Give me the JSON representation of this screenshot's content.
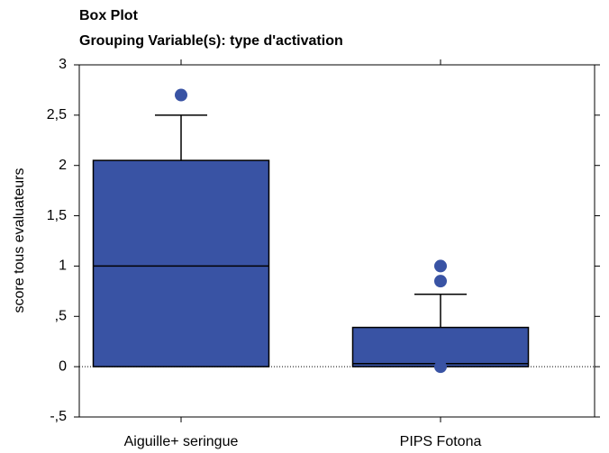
{
  "chart_data": {
    "type": "box",
    "title": "Box Plot",
    "subtitle": "Grouping Variable(s): type d'activation",
    "y_label": "score tous evaluateurs",
    "categories": [
      "Aiguille+ seringue",
      "PIPS Fotona"
    ],
    "color": "#3953a4",
    "boxes": [
      {
        "min": 0,
        "q1": 0,
        "median": 1,
        "q3": 2.05,
        "max": 2.5,
        "outliers": [
          2.7
        ]
      },
      {
        "min": 0,
        "q1": 0,
        "median": 0.03,
        "q3": 0.39,
        "max": 0.72,
        "outliers": [
          1,
          0.85,
          0
        ]
      }
    ],
    "ylim": [
      -0.5,
      3
    ],
    "yticks": [
      {
        "value": -0.5,
        "label": "-,5"
      },
      0,
      {
        "value": 0.5,
        "label": ",5"
      },
      1,
      {
        "value": 1.5,
        "label": "1,5"
      },
      2,
      {
        "value": 2.5,
        "label": "2,5"
      },
      3
    ]
  }
}
